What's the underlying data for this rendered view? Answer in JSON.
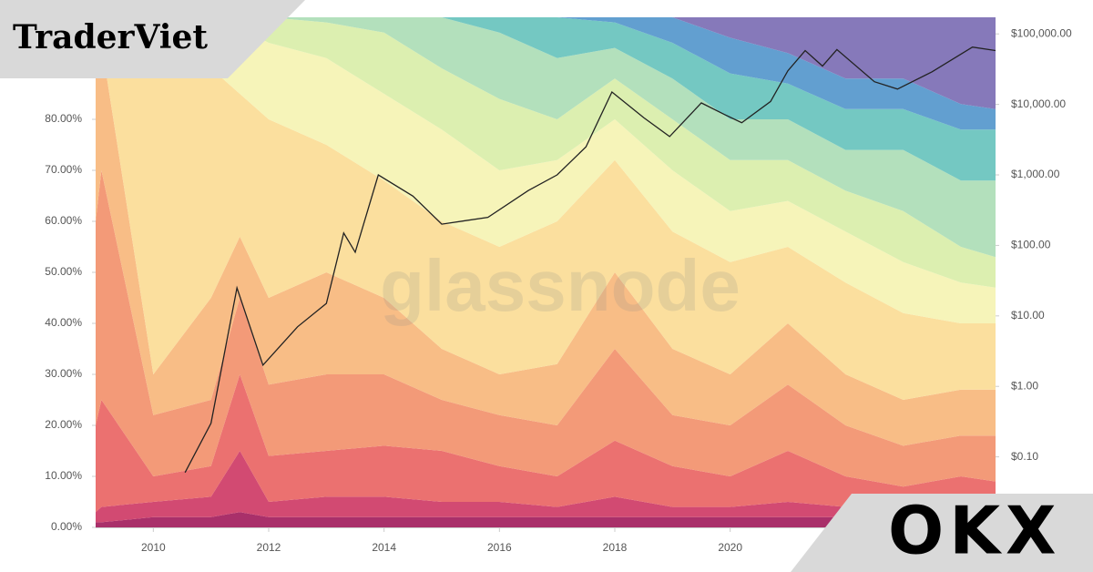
{
  "chart_data": {
    "type": "area",
    "stacked": true,
    "grid": false,
    "watermark": "glassnode",
    "logo": "TraderViet",
    "partner_logo": "OKX",
    "x": [
      2009,
      2009.1,
      2010,
      2011,
      2011.5,
      2012,
      2013,
      2014,
      2015,
      2016,
      2017,
      2018,
      2019,
      2020,
      2021,
      2022,
      2023,
      2024,
      2024.6
    ],
    "xlim": [
      2009,
      2024.6
    ],
    "xticks": [
      2010,
      2012,
      2014,
      2016,
      2018,
      2020
    ],
    "ylim": [
      0,
      100
    ],
    "yticks": [
      {
        "value": 0,
        "label": "0.00%"
      },
      {
        "value": 10,
        "label": "10.00%"
      },
      {
        "value": 20,
        "label": "20.00%"
      },
      {
        "value": 30,
        "label": "30.00%"
      },
      {
        "value": 40,
        "label": "40.00%"
      },
      {
        "value": 50,
        "label": "50.00%"
      },
      {
        "value": 60,
        "label": "60.00%"
      },
      {
        "value": 70,
        "label": "70.00%"
      },
      {
        "value": 80,
        "label": "80.00%"
      }
    ],
    "y2lim": [
      0.01,
      172000
    ],
    "y2_log": true,
    "y2ticks": [
      {
        "value": 0.1,
        "label": "$0.10"
      },
      {
        "value": 1,
        "label": "$1.00"
      },
      {
        "value": 10,
        "label": "$10.00"
      },
      {
        "value": 100,
        "label": "$100.00"
      },
      {
        "value": 1000,
        "label": "$1,000.00"
      },
      {
        "value": 10000,
        "label": "$10,000.00"
      },
      {
        "value": 100000,
        "label": "$100,000.00"
      }
    ],
    "series": [
      {
        "color": "#a9306a",
        "values": [
          1,
          1,
          2,
          2,
          3,
          2,
          2,
          2,
          2,
          2,
          2,
          2,
          2,
          2,
          2,
          2,
          2,
          2,
          2
        ]
      },
      {
        "color": "#d24a72",
        "values": [
          2,
          3,
          3,
          4,
          12,
          3,
          4,
          4,
          3,
          3,
          2,
          4,
          2,
          2,
          3,
          2,
          2,
          2,
          2
        ]
      },
      {
        "color": "#eb7170",
        "values": [
          17,
          21,
          5,
          6,
          15,
          9,
          9,
          10,
          10,
          7,
          6,
          11,
          8,
          6,
          10,
          6,
          4,
          6,
          5
        ]
      },
      {
        "color": "#f39a78",
        "values": [
          40,
          45,
          12,
          13,
          15,
          14,
          15,
          14,
          10,
          10,
          10,
          18,
          10,
          10,
          13,
          10,
          8,
          8,
          9
        ]
      },
      {
        "color": "#f8bd86",
        "values": [
          40,
          25,
          8,
          20,
          12,
          17,
          20,
          15,
          10,
          8,
          12,
          15,
          13,
          10,
          12,
          10,
          9,
          9,
          9
        ]
      },
      {
        "color": "#fbdf9e",
        "values": [
          0,
          5,
          65,
          45,
          28,
          35,
          25,
          23,
          25,
          25,
          28,
          22,
          23,
          22,
          15,
          18,
          17,
          13,
          13
        ]
      },
      {
        "color": "#f6f4b9",
        "values": [
          0,
          0,
          5,
          10,
          13,
          15,
          17,
          17,
          18,
          15,
          12,
          8,
          12,
          10,
          9,
          10,
          10,
          8,
          7
        ]
      },
      {
        "color": "#dcefb0",
        "values": [
          0,
          0,
          0,
          0,
          2,
          5,
          7,
          12,
          12,
          14,
          8,
          8,
          10,
          10,
          8,
          8,
          10,
          7,
          6
        ]
      },
      {
        "color": "#b3e0bc",
        "values": [
          0,
          0,
          0,
          0,
          0,
          0,
          1,
          3,
          10,
          13,
          12,
          6,
          8,
          8,
          8,
          8,
          12,
          13,
          15
        ]
      },
      {
        "color": "#74c8c2",
        "values": [
          0,
          0,
          0,
          0,
          0,
          0,
          0,
          0,
          0,
          3,
          8,
          5,
          7,
          9,
          7,
          8,
          8,
          10,
          10
        ]
      },
      {
        "color": "#629fd0",
        "values": [
          0,
          0,
          0,
          0,
          0,
          0,
          0,
          0,
          0,
          0,
          0,
          1,
          5,
          7,
          6,
          6,
          6,
          5,
          4
        ]
      },
      {
        "color": "#8679ba",
        "values": [
          0,
          0,
          0,
          0,
          0,
          0,
          0,
          0,
          0,
          0,
          0,
          0,
          0,
          4,
          7,
          12,
          12,
          17,
          18
        ]
      },
      {
        "type": "line",
        "axis": "y2",
        "color": "#222222",
        "x": [
          2010.55,
          2011.0,
          2011.45,
          2011.9,
          2012.5,
          2013.0,
          2013.3,
          2013.5,
          2013.9,
          2014.5,
          2015.0,
          2015.8,
          2016.5,
          2017.0,
          2017.5,
          2017.95,
          2018.5,
          2018.95,
          2019.5,
          2019.9,
          2020.2,
          2020.7,
          2021.0,
          2021.3,
          2021.6,
          2021.85,
          2022.5,
          2022.9,
          2023.5,
          2024.2,
          2024.6
        ],
        "values": [
          0.06,
          0.3,
          25,
          2,
          7,
          15,
          150,
          80,
          1000,
          500,
          200,
          250,
          600,
          1000,
          2500,
          15000,
          6500,
          3500,
          10500,
          7200,
          5500,
          11000,
          30000,
          58000,
          35000,
          60000,
          21000,
          16500,
          29000,
          65000,
          58000
        ]
      }
    ]
  }
}
